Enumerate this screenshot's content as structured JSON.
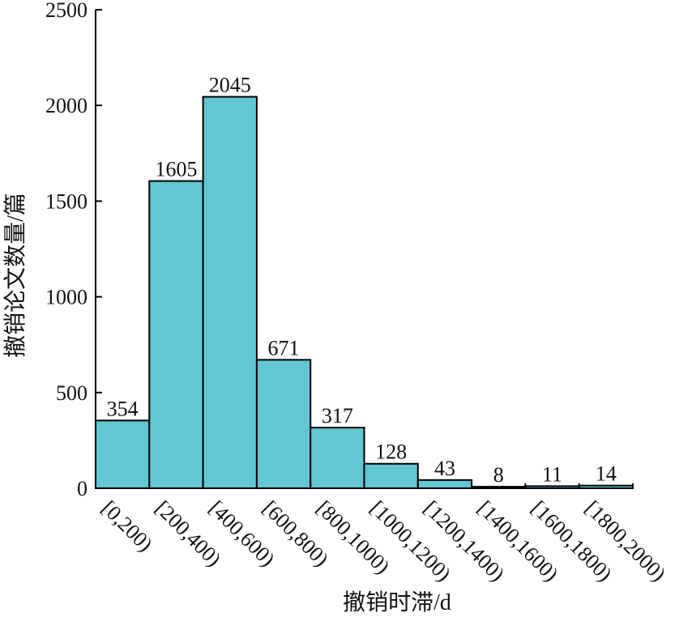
{
  "chart_data": {
    "type": "bar",
    "categories": [
      "[0,200)",
      "[200,400)",
      "[400,600)",
      "[600,800)",
      "[800,1000)",
      "[1000,1200)",
      "[1200,1400)",
      "[1400,1600)",
      "[1600,1800)",
      "[1800,2000)"
    ],
    "values": [
      354,
      1605,
      2045,
      671,
      317,
      128,
      43,
      8,
      11,
      14
    ],
    "title": "",
    "xlabel": "撤销时滞/d",
    "ylabel": "撤销论文数量/篇",
    "ylim": [
      0,
      2500
    ],
    "yticks": [
      0,
      500,
      1000,
      1500,
      2000,
      2500
    ],
    "bar_color": "#62c6d3",
    "grid": false,
    "legend": "none"
  }
}
